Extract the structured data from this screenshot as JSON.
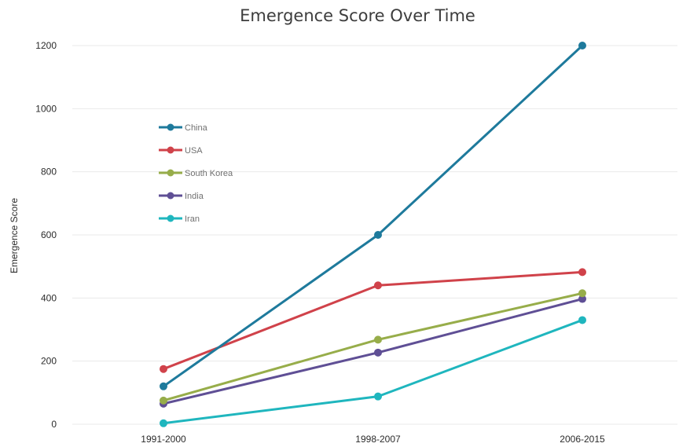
{
  "chart_data": {
    "type": "line",
    "title": "Emergence Score Over Time",
    "xlabel": "",
    "ylabel": "Emergence Score",
    "categories": [
      "1991-2000",
      "1998-2007",
      "2006-2015"
    ],
    "ylim": [
      0,
      1200
    ],
    "yticks": [
      0,
      200,
      400,
      600,
      800,
      1000,
      1200
    ],
    "grid": true,
    "legend_position": "upper-left",
    "series": [
      {
        "name": "China",
        "color": "#1e7a9c",
        "values": [
          120,
          600,
          1200
        ]
      },
      {
        "name": "USA",
        "color": "#d0424a",
        "values": [
          175,
          440,
          482
        ]
      },
      {
        "name": "South Korea",
        "color": "#97ad4a",
        "values": [
          75,
          268,
          415
        ]
      },
      {
        "name": "India",
        "color": "#5f4f95",
        "values": [
          65,
          227,
          397
        ]
      },
      {
        "name": "Iran",
        "color": "#1fb6be",
        "values": [
          3,
          88,
          330
        ]
      }
    ]
  }
}
